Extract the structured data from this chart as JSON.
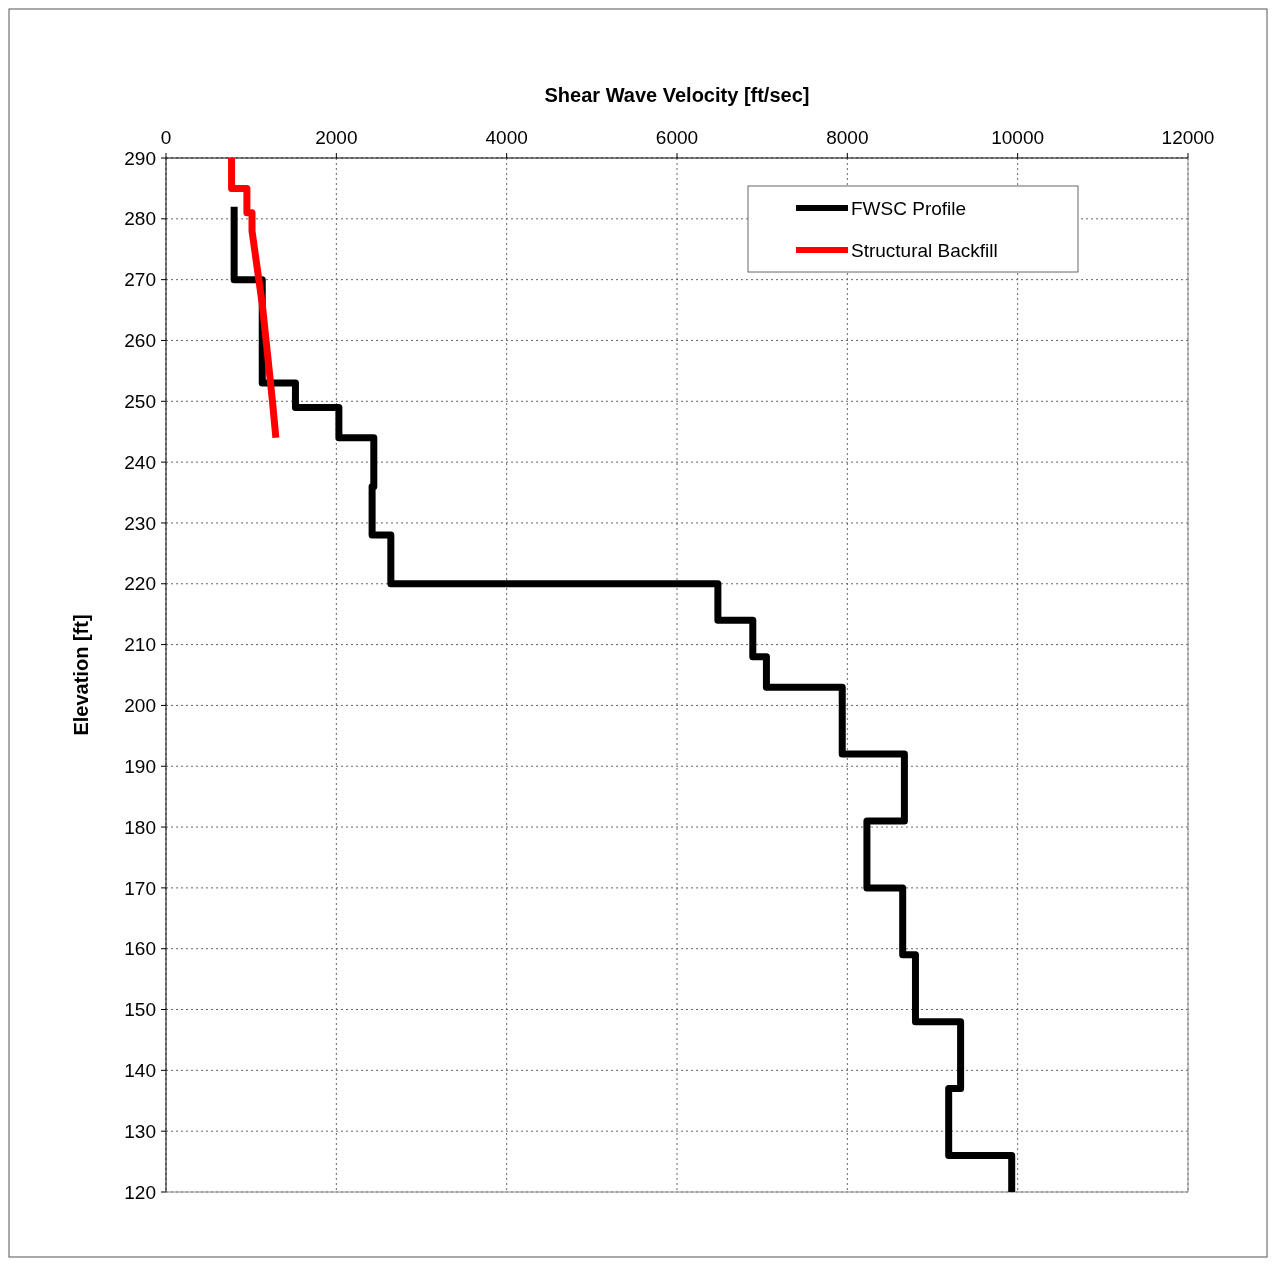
{
  "chart_data": {
    "type": "line",
    "xlabel": "Shear Wave Velocity [ft/sec]",
    "ylabel": "Elevation [ft]",
    "xlim": [
      0,
      12000
    ],
    "xticks": [
      0,
      2000,
      4000,
      6000,
      8000,
      10000,
      12000
    ],
    "ylim": [
      120,
      290
    ],
    "yticks": [
      120,
      130,
      140,
      150,
      160,
      170,
      180,
      190,
      200,
      210,
      220,
      230,
      240,
      250,
      260,
      270,
      280,
      290
    ],
    "grid": true,
    "legend": "top right",
    "marker": "none",
    "line_style": "solid",
    "series": [
      {
        "name": "FWSC Profile",
        "color": "#000000",
        "x": [
          800,
          800,
          1130,
          1130,
          1520,
          1520,
          2030,
          2030,
          2440,
          2440,
          2420,
          2420,
          2640,
          2640,
          6480,
          6480,
          6890,
          6890,
          7050,
          7050,
          7940,
          7940,
          8670,
          8670,
          8230,
          8230,
          8650,
          8650,
          8800,
          8800,
          9330,
          9330,
          9190,
          9190,
          9930,
          9930
        ],
        "values": [
          282,
          270,
          270,
          253,
          253,
          249,
          249,
          244,
          244,
          236,
          236,
          228,
          228,
          220,
          220,
          214,
          214,
          208,
          208,
          203,
          203,
          192,
          192,
          181,
          181,
          170,
          170,
          159,
          159,
          148,
          148,
          137,
          137,
          126,
          126,
          120
        ]
      },
      {
        "name": "Structural Backfill",
        "color": "#ff0000",
        "x": [
          770,
          770,
          950,
          950,
          1010,
          1010,
          1050,
          1090,
          1130,
          1160,
          1190,
          1220,
          1250,
          1270,
          1290
        ],
        "values": [
          290,
          285,
          285,
          281,
          281,
          278,
          274,
          270,
          266,
          262,
          258,
          254,
          250,
          247,
          244
        ]
      }
    ]
  }
}
